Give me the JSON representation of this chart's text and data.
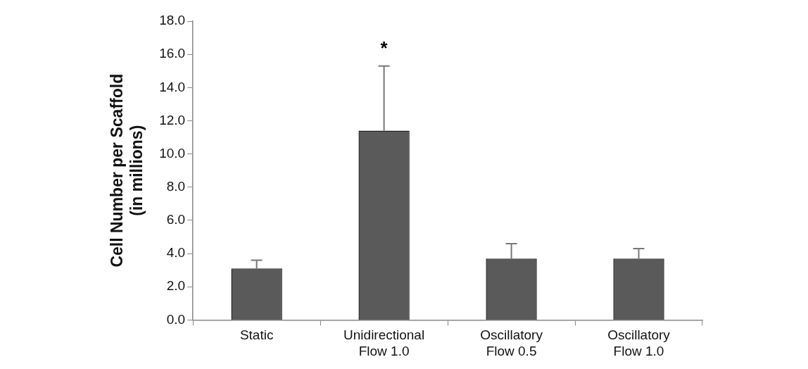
{
  "chart_data": {
    "type": "bar",
    "ylabel": "Cell Number per Scaffold\n(in millions)",
    "categories": [
      "Static",
      "Unidirectional\nFlow 1.0",
      "Oscillatory\nFlow 0.5",
      "Oscillatory\nFlow 1.0"
    ],
    "values": [
      3.1,
      11.4,
      3.7,
      3.7
    ],
    "color": "#5a5a5a",
    "errors": [
      [
        3.1,
        3.6
      ],
      [
        11.4,
        15.3
      ],
      [
        3.7,
        4.6
      ],
      [
        3.7,
        4.3
      ]
    ],
    "ylim": [
      0,
      18
    ],
    "yticks": [
      {
        "value": 0,
        "label": "0.0"
      },
      {
        "value": 2,
        "label": "2.0"
      },
      {
        "value": 4,
        "label": "4.0"
      },
      {
        "value": 6,
        "label": "6.0"
      },
      {
        "value": 8,
        "label": "8.0"
      },
      {
        "value": 10,
        "label": "10.0"
      },
      {
        "value": 12,
        "label": "12.0"
      },
      {
        "value": 14,
        "label": "14.0"
      },
      {
        "value": 16,
        "label": "16.0"
      },
      {
        "value": 18,
        "label": "18.0"
      }
    ],
    "annotations": [
      "*"
    ],
    "grid": false,
    "legend": false
  }
}
